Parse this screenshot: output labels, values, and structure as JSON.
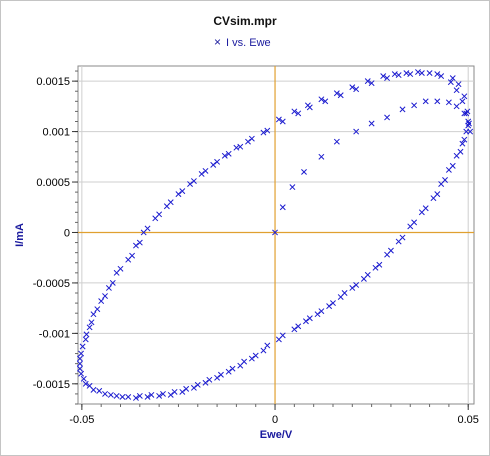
{
  "chart_data": {
    "type": "scatter",
    "title": "CVsim.mpr",
    "xlabel": "Ewe/V",
    "ylabel": "I/mA",
    "xlim": [
      -0.051,
      0.0515
    ],
    "ylim": [
      -0.0017,
      0.00165
    ],
    "xticks": [
      -0.05,
      0,
      0.05
    ],
    "xtick_labels": [
      "-0.05",
      "0",
      "0.05"
    ],
    "yticks": [
      -0.0015,
      -0.001,
      -0.0005,
      0,
      0.0005,
      0.001,
      0.0015
    ],
    "ytick_labels": [
      "-0.0015",
      "-0.001",
      "-0.0005",
      "0",
      "0.0005",
      "0.001",
      "0.0015"
    ],
    "grid": true,
    "legend_position": "top-center",
    "marker": "x",
    "colors": {
      "series": "#1c1ccf",
      "zero_lines": "#e0a030",
      "grid": "#cfcfcf"
    },
    "series": [
      {
        "name": "I vs. Ewe",
        "points": [
          [
            0.0,
            0.0
          ],
          [
            0.002,
            0.00025
          ],
          [
            0.0045,
            0.00045
          ],
          [
            0.0075,
            0.0006
          ],
          [
            0.012,
            0.00075
          ],
          [
            0.016,
            0.0009
          ],
          [
            0.021,
            0.001
          ],
          [
            0.025,
            0.00108
          ],
          [
            0.029,
            0.00114
          ],
          [
            0.033,
            0.00122
          ],
          [
            0.036,
            0.00126
          ],
          [
            0.039,
            0.0013
          ],
          [
            0.042,
            0.0013
          ],
          [
            0.045,
            0.00129
          ],
          [
            0.047,
            0.00125
          ],
          [
            0.049,
            0.00118
          ],
          [
            0.05,
            0.0011
          ],
          [
            0.0505,
            0.001
          ],
          [
            0.0502,
            0.00108
          ],
          [
            0.0495,
            0.00118
          ],
          [
            0.0485,
            0.0013
          ],
          [
            0.047,
            0.00141
          ],
          [
            0.0455,
            0.00149
          ],
          [
            0.043,
            0.00155
          ],
          [
            0.04,
            0.00158
          ],
          [
            0.037,
            0.00159
          ],
          [
            0.034,
            0.00158
          ],
          [
            0.031,
            0.00157
          ],
          [
            0.028,
            0.00155
          ],
          [
            0.024,
            0.0015
          ],
          [
            0.02,
            0.00144
          ],
          [
            0.016,
            0.00138
          ],
          [
            0.012,
            0.00132
          ],
          [
            0.0085,
            0.00126
          ],
          [
            0.005,
            0.0012
          ],
          [
            0.001,
            0.00112
          ],
          [
            -0.003,
            0.00099
          ],
          [
            -0.007,
            0.0009
          ],
          [
            -0.01,
            0.00084
          ],
          [
            -0.013,
            0.00076
          ],
          [
            -0.016,
            0.00067
          ],
          [
            -0.019,
            0.00058
          ],
          [
            -0.022,
            0.00048
          ],
          [
            -0.025,
            0.00038
          ],
          [
            -0.028,
            0.00026
          ],
          [
            -0.031,
            0.00014
          ],
          [
            -0.034,
            0.0
          ],
          [
            -0.036,
            -0.00013
          ],
          [
            -0.038,
            -0.00027
          ],
          [
            -0.041,
            -0.0004
          ],
          [
            -0.043,
            -0.00055
          ],
          [
            -0.045,
            -0.00068
          ],
          [
            -0.047,
            -0.00081
          ],
          [
            -0.048,
            -0.00094
          ],
          [
            -0.049,
            -0.00106
          ],
          [
            -0.0502,
            -0.0012
          ],
          [
            -0.0505,
            -0.0013
          ],
          [
            -0.0502,
            -0.0014
          ],
          [
            -0.049,
            -0.0015
          ],
          [
            -0.047,
            -0.00156
          ],
          [
            -0.044,
            -0.0016
          ],
          [
            -0.041,
            -0.00162
          ],
          [
            -0.038,
            -0.00163
          ],
          [
            -0.035,
            -0.00162
          ],
          [
            -0.032,
            -0.00161
          ],
          [
            -0.029,
            -0.0016
          ],
          [
            -0.026,
            -0.00158
          ],
          [
            -0.023,
            -0.00155
          ],
          [
            -0.02,
            -0.00151
          ],
          [
            -0.017,
            -0.00146
          ],
          [
            -0.014,
            -0.00141
          ],
          [
            -0.011,
            -0.00135
          ],
          [
            -0.008,
            -0.00128
          ],
          [
            -0.005,
            -0.00122
          ],
          [
            -0.002,
            -0.00112
          ],
          [
            0.002,
            -0.00102
          ],
          [
            0.006,
            -0.00093
          ],
          [
            0.009,
            -0.00085
          ],
          [
            0.012,
            -0.00078
          ],
          [
            0.015,
            -0.0007
          ],
          [
            0.018,
            -0.0006
          ],
          [
            0.021,
            -0.00052
          ],
          [
            0.024,
            -0.00042
          ],
          [
            0.027,
            -0.00032
          ],
          [
            0.03,
            -0.00018
          ],
          [
            0.033,
            -5e-05
          ],
          [
            0.036,
            0.0001
          ],
          [
            0.039,
            0.00024
          ],
          [
            0.042,
            0.00038
          ],
          [
            0.044,
            0.00052
          ],
          [
            0.046,
            0.00066
          ],
          [
            0.048,
            0.0008
          ],
          [
            0.049,
            0.00092
          ],
          [
            0.05,
            0.00106
          ],
          [
            0.0498,
            0.0012
          ],
          [
            0.049,
            0.00135
          ],
          [
            0.0475,
            0.00147
          ],
          [
            0.046,
            0.00153
          ],
          [
            0.042,
            0.00157
          ],
          [
            0.038,
            0.00158
          ],
          [
            0.035,
            0.00157
          ],
          [
            0.032,
            0.00156
          ],
          [
            0.029,
            0.00153
          ],
          [
            0.025,
            0.00148
          ],
          [
            0.021,
            0.00142
          ],
          [
            0.017,
            0.00136
          ],
          [
            0.013,
            0.0013
          ],
          [
            0.009,
            0.00124
          ],
          [
            0.006,
            0.00118
          ],
          [
            0.002,
            0.0011
          ],
          [
            -0.002,
            0.00101
          ],
          [
            -0.006,
            0.00093
          ],
          [
            -0.009,
            0.00085
          ],
          [
            -0.012,
            0.00078
          ],
          [
            -0.015,
            0.0007
          ],
          [
            -0.018,
            0.00061
          ],
          [
            -0.021,
            0.00051
          ],
          [
            -0.024,
            0.00041
          ],
          [
            -0.027,
            0.0003
          ],
          [
            -0.03,
            0.00018
          ],
          [
            -0.033,
            4e-05
          ],
          [
            -0.035,
            -0.0001
          ],
          [
            -0.037,
            -0.00023
          ],
          [
            -0.04,
            -0.00036
          ],
          [
            -0.042,
            -0.0005
          ],
          [
            -0.044,
            -0.00063
          ],
          [
            -0.046,
            -0.00076
          ],
          [
            -0.0475,
            -0.00089
          ],
          [
            -0.0488,
            -0.00101
          ],
          [
            -0.0498,
            -0.00113
          ],
          [
            -0.0505,
            -0.00125
          ],
          [
            -0.0505,
            -0.00135
          ],
          [
            -0.0495,
            -0.00145
          ],
          [
            -0.048,
            -0.00152
          ],
          [
            -0.0455,
            -0.00157
          ],
          [
            -0.0425,
            -0.00161
          ],
          [
            -0.0395,
            -0.00163
          ],
          [
            -0.036,
            -0.00164
          ],
          [
            -0.033,
            -0.00163
          ],
          [
            -0.03,
            -0.00162
          ],
          [
            -0.027,
            -0.00161
          ],
          [
            -0.024,
            -0.00158
          ],
          [
            -0.021,
            -0.00154
          ],
          [
            -0.018,
            -0.00149
          ],
          [
            -0.015,
            -0.00144
          ],
          [
            -0.012,
            -0.00138
          ],
          [
            -0.009,
            -0.00132
          ],
          [
            -0.006,
            -0.00125
          ],
          [
            -0.003,
            -0.00117
          ],
          [
            0.001,
            -0.00106
          ],
          [
            0.005,
            -0.00096
          ],
          [
            0.008,
            -0.00088
          ],
          [
            0.011,
            -0.00081
          ],
          [
            0.014,
            -0.00073
          ],
          [
            0.017,
            -0.00064
          ],
          [
            0.02,
            -0.00055
          ],
          [
            0.023,
            -0.00046
          ],
          [
            0.026,
            -0.00035
          ],
          [
            0.029,
            -0.00022
          ],
          [
            0.032,
            -9e-05
          ],
          [
            0.035,
            6e-05
          ],
          [
            0.038,
            0.0002
          ],
          [
            0.041,
            0.00034
          ],
          [
            0.043,
            0.00048
          ],
          [
            0.045,
            0.00062
          ],
          [
            0.047,
            0.00076
          ],
          [
            0.0485,
            0.00088
          ],
          [
            0.0495,
            0.001
          ]
        ]
      }
    ]
  }
}
